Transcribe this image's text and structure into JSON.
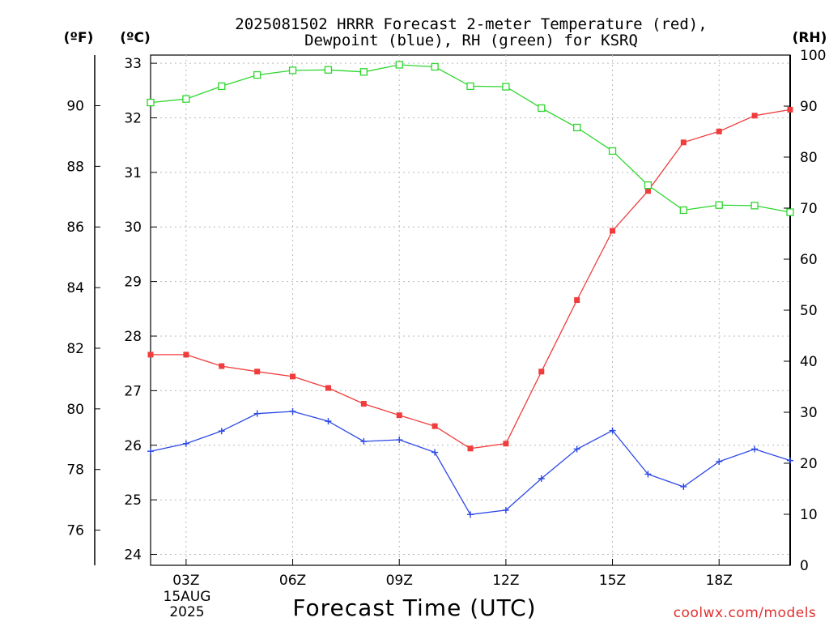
{
  "chart_data": {
    "type": "line",
    "title_line1": "2025081502 HRRR Forecast 2-meter Temperature (red),",
    "title_line2": "Dewpoint (blue), RH (green) for KSRQ",
    "xlabel": "Forecast Time (UTC)",
    "watermark": "coolwx.com/models",
    "unit_labels": {
      "fahrenheit": "(ºF)",
      "celsius": "(ºC)",
      "rh": "(RH)"
    },
    "x_ticks": [
      "03Z",
      "06Z",
      "09Z",
      "12Z",
      "15Z",
      "18Z"
    ],
    "x_tick_hours": [
      3,
      6,
      9,
      12,
      15,
      18
    ],
    "date_label_line1": "15AUG",
    "date_label_line2": "2025",
    "x_range_hours": [
      2,
      20
    ],
    "celsius_ticks": [
      "24",
      "25",
      "26",
      "27",
      "28",
      "29",
      "30",
      "31",
      "32",
      "33"
    ],
    "celsius_range": [
      23.8,
      33.15
    ],
    "fahrenheit_ticks": [
      "76",
      "78",
      "80",
      "82",
      "84",
      "86",
      "88",
      "90"
    ],
    "rh_ticks": [
      "0",
      "10",
      "20",
      "30",
      "40",
      "50",
      "60",
      "70",
      "80",
      "90",
      "100"
    ],
    "rh_range": [
      0,
      100
    ],
    "grid": true,
    "hours": [
      2,
      3,
      4,
      5,
      6,
      7,
      8,
      9,
      10,
      11,
      12,
      13,
      14,
      15,
      16,
      17,
      18,
      19,
      20
    ],
    "series": [
      {
        "key": "temperature",
        "color": "#f03c3c",
        "marker": "filled-square",
        "axis": "celsius",
        "values": [
          27.66,
          27.66,
          27.45,
          27.35,
          27.26,
          27.05,
          26.76,
          26.55,
          26.35,
          25.94,
          26.03,
          27.35,
          28.66,
          29.93,
          30.66,
          31.55,
          31.75,
          32.04,
          32.15
        ]
      },
      {
        "key": "dewpoint",
        "color": "#2b47e6",
        "marker": "plus",
        "axis": "celsius",
        "values": [
          25.89,
          26.03,
          26.26,
          26.58,
          26.62,
          26.44,
          26.07,
          26.1,
          25.87,
          24.73,
          24.81,
          25.39,
          25.93,
          26.27,
          25.47,
          25.24,
          25.7,
          25.93,
          25.72
        ]
      },
      {
        "key": "relative_humidity",
        "color": "#2ed62e",
        "marker": "open-square",
        "axis": "rh",
        "values": [
          90.7,
          91.4,
          93.9,
          96.1,
          97.0,
          97.1,
          96.7,
          98.1,
          97.7,
          93.9,
          93.8,
          89.6,
          85.8,
          81.2,
          74.5,
          69.6,
          70.6,
          70.5,
          69.2
        ]
      }
    ]
  }
}
